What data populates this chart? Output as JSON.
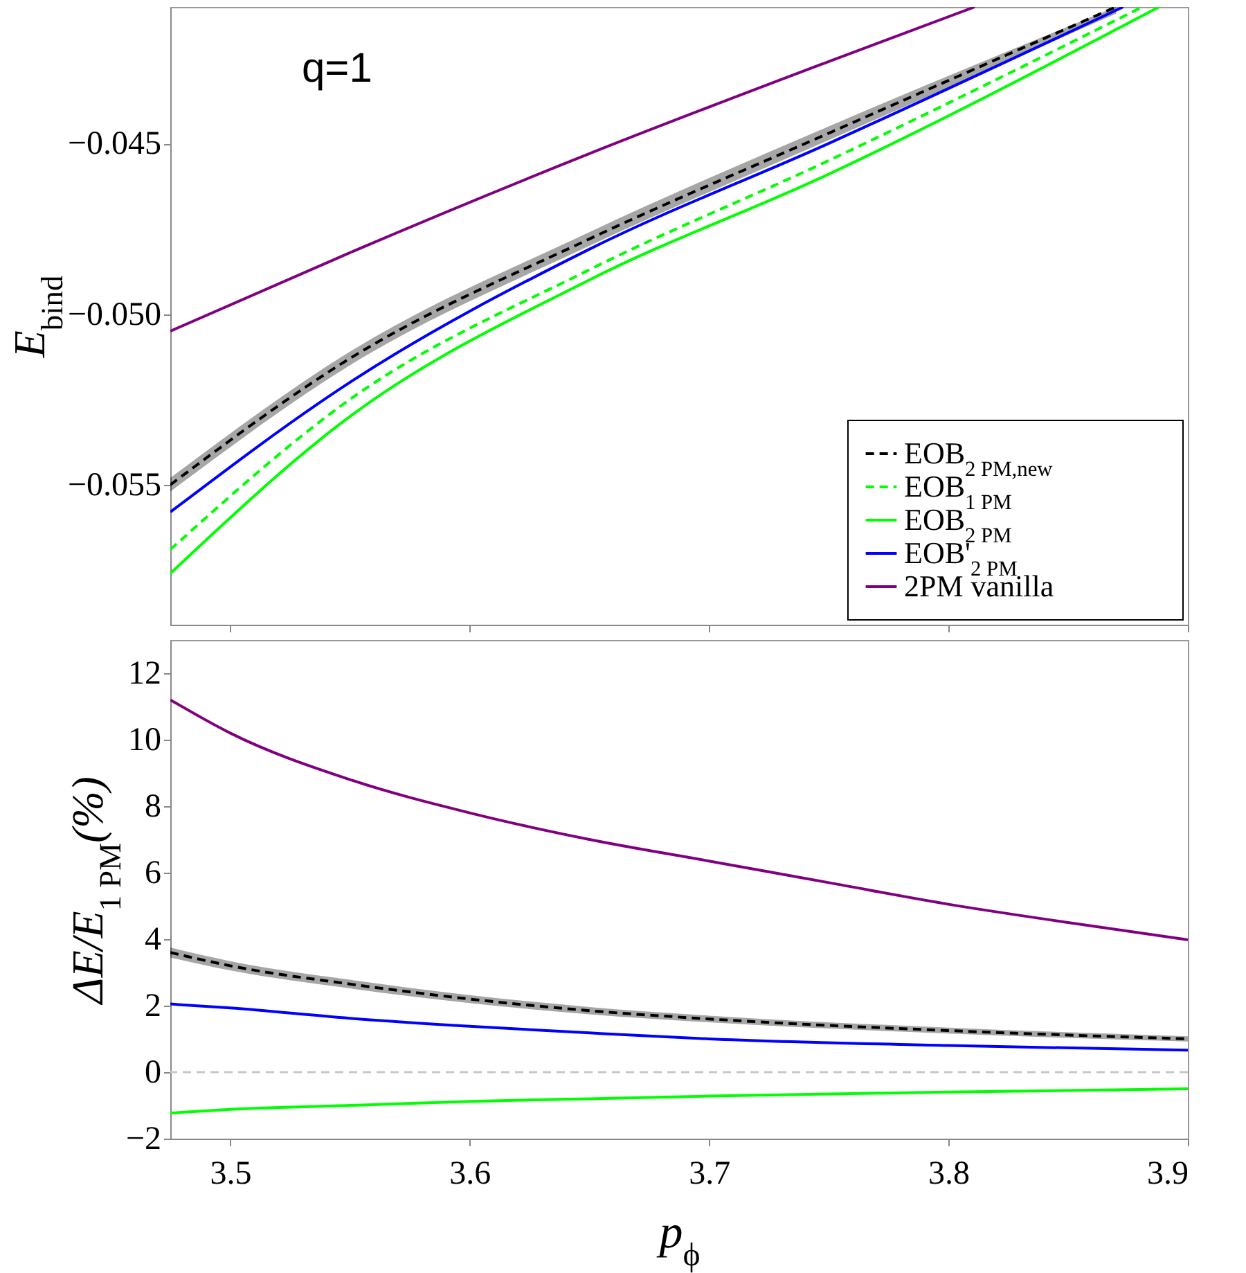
{
  "chart_data": [
    {
      "type": "line",
      "ylabel": "E$_{bind}$",
      "annotations": [
        "q=1"
      ],
      "xlim": [
        3.475,
        3.9
      ],
      "xticks": [
        3.5,
        3.6,
        3.7,
        3.8,
        3.9
      ],
      "ylim": [
        -0.0591,
        -0.041
      ],
      "yticks": [
        {
          "value": -0.055,
          "label": "−0.055"
        },
        {
          "value": -0.05,
          "label": "−0.050"
        },
        {
          "value": -0.045,
          "label": "−0.045"
        }
      ],
      "tick_labels": "y",
      "grid": false,
      "legend": "bottom right",
      "series": [
        {
          "name": "EOB$_{2 PM,new}$",
          "color": "#000000",
          "line_style": "dashed",
          "x": [
            3.475,
            3.55,
            3.65,
            3.75,
            3.87
          ],
          "values": [
            -0.055,
            -0.0513,
            -0.0478,
            -0.0447,
            -0.041
          ],
          "lower": [
            -0.0552,
            -0.0515,
            -0.048,
            -0.0449,
            -0.0412
          ],
          "upper": [
            -0.0548,
            -0.0511,
            -0.0476,
            -0.0445,
            -0.041
          ]
        },
        {
          "name": "EOB$_{1 PM}$",
          "color": "#00ff00",
          "line_style": "dashed",
          "x": [
            3.475,
            3.55,
            3.65,
            3.75,
            3.881
          ],
          "values": [
            -0.0569,
            -0.0525,
            -0.0487,
            -0.0455,
            -0.041
          ]
        },
        {
          "name": "EOB$_{2 PM}$",
          "color": "#00ff00",
          "line_style": "solid",
          "x": [
            3.475,
            3.55,
            3.65,
            3.75,
            3.888
          ],
          "values": [
            -0.0576,
            -0.053,
            -0.049,
            -0.0459,
            -0.041
          ]
        },
        {
          "name": "EOB'$_{2 PM}$",
          "color": "#0000ff",
          "line_style": "solid",
          "x": [
            3.475,
            3.55,
            3.65,
            3.75,
            3.873
          ],
          "values": [
            -0.0558,
            -0.052,
            -0.0481,
            -0.045,
            -0.041
          ]
        },
        {
          "name": "2PM vanilla",
          "color": "#800080",
          "line_style": "solid",
          "x": [
            3.475,
            3.55,
            3.65,
            3.75,
            3.811
          ],
          "values": [
            -0.0505,
            -0.0482,
            -0.0453,
            -0.0426,
            -0.041
          ]
        }
      ]
    },
    {
      "type": "line",
      "xlabel": "p$_{ϕ}$",
      "ylabel": "ΔE/E$_{1 PM}$(%)",
      "xlim": [
        3.475,
        3.9
      ],
      "xticks": [
        3.5,
        3.6,
        3.7,
        3.8,
        3.9
      ],
      "ylim": [
        -2,
        13
      ],
      "yticks": [
        {
          "value": -2,
          "label": "−2"
        },
        0,
        2,
        4,
        6,
        8,
        10,
        12
      ],
      "grid": false,
      "ref_lines": [
        {
          "axis": "y",
          "value": 0,
          "color": "#c8c8c8",
          "line_style": "dashed"
        }
      ],
      "series": [
        {
          "color": "#000000",
          "line_style": "dashed",
          "x": [
            3.475,
            3.5,
            3.55,
            3.6,
            3.65,
            3.7,
            3.8,
            3.9
          ],
          "values": [
            3.6,
            3.2,
            2.65,
            2.2,
            1.85,
            1.6,
            1.25,
            1.0
          ],
          "lower": [
            3.45,
            3.06,
            2.52,
            2.08,
            1.74,
            1.5,
            1.16,
            0.92
          ],
          "upper": [
            3.75,
            3.34,
            2.78,
            2.32,
            1.96,
            1.7,
            1.34,
            1.08
          ]
        },
        {
          "color": "#0000ff",
          "line_style": "solid",
          "x": [
            3.475,
            3.5,
            3.55,
            3.6,
            3.65,
            3.7,
            3.8,
            3.9
          ],
          "values": [
            2.05,
            1.93,
            1.62,
            1.38,
            1.18,
            1.0,
            0.8,
            0.66
          ]
        },
        {
          "color": "#00ff00",
          "line_style": "solid",
          "x": [
            3.475,
            3.5,
            3.55,
            3.6,
            3.65,
            3.7,
            3.8,
            3.9
          ],
          "values": [
            -1.23,
            -1.12,
            -1.0,
            -0.88,
            -0.8,
            -0.72,
            -0.6,
            -0.5
          ]
        },
        {
          "color": "#800080",
          "line_style": "solid",
          "x": [
            3.475,
            3.5,
            3.55,
            3.6,
            3.65,
            3.7,
            3.75,
            3.8,
            3.85,
            3.9
          ],
          "values": [
            11.2,
            10.2,
            8.8,
            7.8,
            7.0,
            6.35,
            5.7,
            5.05,
            4.5,
            3.98
          ]
        }
      ]
    }
  ]
}
